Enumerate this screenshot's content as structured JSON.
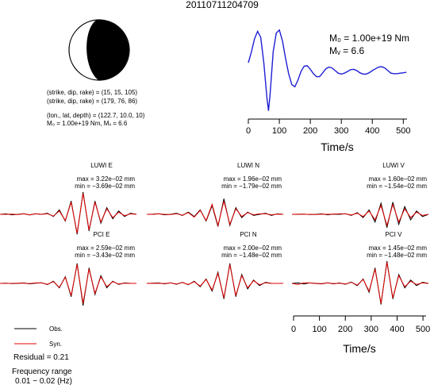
{
  "title": "20110711204709",
  "colors": {
    "observed": "#000000",
    "synthetic": "#e00000",
    "stf": "#1f1fd6",
    "beachball": "#000000"
  },
  "source": {
    "line1": "(strike, dip, rake) = (15, 15, 105)",
    "line2": "(strike, dip, rake) = (179, 76, 86)",
    "line3": "(lon., lat, depth) = (122.7, 10.0, 10)",
    "line4": "M₀ = 1.00e+19 Nm, Mᵥ = 6.6",
    "m0_label": "M₀ = 1.00e+19 Nm",
    "mw_label": "Mᵥ = 6.6"
  },
  "legend": {
    "obs": "Obs.",
    "syn": "Syn.",
    "residual": "Residual = 0.21",
    "freq_title": "Frequency range",
    "freq_values": "0.01 − 0.02 (Hz)"
  },
  "chart_data": [
    {
      "type": "line",
      "name": "source-time-function",
      "xlabel": "Time/s",
      "xlim": [
        0,
        512
      ],
      "xticks": [
        "0",
        "100",
        "200",
        "300",
        "400",
        "500"
      ],
      "x": [
        0,
        10,
        20,
        30,
        40,
        50,
        60,
        65,
        70,
        80,
        90,
        100,
        110,
        120,
        130,
        140,
        150,
        160,
        170,
        180,
        190,
        200,
        210,
        220,
        230,
        240,
        250,
        260,
        270,
        280,
        290,
        300,
        310,
        320,
        330,
        340,
        350,
        360,
        370,
        380,
        390,
        400,
        410,
        420,
        430,
        440,
        450,
        460,
        470,
        480,
        490,
        500,
        510
      ],
      "values": [
        0.2,
        0.45,
        0.75,
        0.92,
        0.78,
        0.2,
        -0.6,
        -0.9,
        -0.55,
        0.45,
        0.88,
        0.95,
        0.7,
        0.3,
        -0.05,
        -0.3,
        -0.35,
        -0.2,
        0.0,
        0.12,
        0.13,
        0.05,
        -0.05,
        -0.12,
        -0.12,
        -0.03,
        0.06,
        0.1,
        0.08,
        0.02,
        -0.04,
        -0.06,
        -0.04,
        0.0,
        0.04,
        0.05,
        0.02,
        -0.03,
        -0.06,
        -0.06,
        -0.03,
        0.02,
        0.06,
        0.1,
        0.11,
        0.08,
        0.02,
        -0.04,
        -0.05,
        -0.05,
        -0.04,
        -0.03,
        -0.02
      ]
    },
    {
      "type": "line",
      "name": "waveforms",
      "xlabel": "Time/s",
      "xlim": [
        0,
        512
      ],
      "xticks": [
        "0",
        "100",
        "200",
        "300",
        "400",
        "500"
      ],
      "legend": [
        "Obs.",
        "Syn."
      ],
      "traces": [
        {
          "label": "LUWI E",
          "max": "max = 3.22e−02 mm",
          "min": "min = −3.69e−02 mm",
          "obs": [
            0,
            0.02,
            -0.02,
            0.0,
            0.03,
            -0.03,
            0.02,
            0.0,
            0.05,
            -0.1,
            0.2,
            -0.3,
            0.6,
            -0.9,
            1.0,
            -0.75,
            0.6,
            -0.4,
            0.3,
            -0.2,
            0.15,
            -0.1,
            0.05,
            0.0
          ],
          "syn": [
            0,
            0.0,
            0.01,
            -0.01,
            0.02,
            -0.02,
            0.03,
            0.0,
            0.03,
            -0.08,
            0.15,
            -0.28,
            0.55,
            -0.85,
            0.95,
            -0.7,
            0.55,
            -0.35,
            0.25,
            -0.15,
            0.1,
            -0.06,
            0.02,
            0.0
          ]
        },
        {
          "label": "LUWI N",
          "max": "max = 1.96e−02 mm",
          "min": "min = −1.79e−02 mm",
          "obs": [
            0,
            0.01,
            0.03,
            -0.02,
            0.0,
            0.05,
            -0.05,
            0.1,
            -0.1,
            0.2,
            -0.3,
            0.4,
            -0.55,
            0.7,
            -0.5,
            0.3,
            -0.15,
            0.1,
            -0.05,
            0.0,
            0.05,
            -0.05,
            0.02,
            0.0
          ],
          "syn": [
            0,
            0.0,
            0.02,
            0.0,
            -0.01,
            0.03,
            -0.04,
            0.08,
            -0.12,
            0.18,
            -0.28,
            0.45,
            -0.5,
            0.6,
            -0.45,
            0.25,
            -0.1,
            0.08,
            -0.02,
            0.02,
            0.03,
            -0.02,
            0.01,
            0.0
          ]
        },
        {
          "label": "LUWI V",
          "max": "max = 1.60e−02 mm",
          "min": "min = −1.54e−02 mm",
          "obs": [
            0,
            0.0,
            0.01,
            -0.01,
            0.0,
            0.02,
            -0.02,
            0.01,
            0.0,
            0.03,
            -0.05,
            0.08,
            -0.15,
            0.2,
            -0.35,
            0.5,
            -0.6,
            0.55,
            -0.45,
            0.35,
            -0.25,
            0.15,
            -0.1,
            0.0
          ],
          "syn": [
            0,
            0.01,
            0.0,
            0.0,
            -0.01,
            0.01,
            0.0,
            0.01,
            0.02,
            0.02,
            -0.03,
            0.05,
            -0.1,
            0.15,
            -0.25,
            0.4,
            -0.5,
            0.45,
            -0.35,
            0.25,
            -0.15,
            0.1,
            -0.05,
            0.0
          ]
        },
        {
          "label": "PCI E",
          "max": "max = 2.59e−02 mm",
          "min": "min = −3.43e−02 mm",
          "obs": [
            0,
            0.01,
            -0.01,
            0.0,
            0.02,
            -0.02,
            0.01,
            0.03,
            -0.05,
            0.1,
            -0.2,
            0.3,
            -0.6,
            0.9,
            -1.0,
            0.7,
            -0.5,
            0.35,
            -0.2,
            0.1,
            -0.05,
            0.02,
            0.0,
            0.0
          ],
          "syn": [
            0,
            0.0,
            0.0,
            0.01,
            0.01,
            -0.01,
            0.02,
            0.02,
            -0.04,
            0.08,
            -0.18,
            0.28,
            -0.55,
            0.85,
            -0.9,
            0.65,
            -0.45,
            0.3,
            -0.15,
            0.08,
            -0.03,
            0.01,
            0.0,
            0.0
          ]
        },
        {
          "label": "PCI N",
          "max": "max = 2.00e−02 mm",
          "min": "min = −1.48e−02 mm",
          "obs": [
            0,
            0.01,
            0.02,
            -0.02,
            0.03,
            -0.04,
            0.05,
            -0.06,
            0.1,
            -0.15,
            0.2,
            -0.35,
            0.5,
            -0.7,
            0.9,
            -0.6,
            0.4,
            -0.25,
            0.15,
            -0.1,
            0.05,
            0.0,
            0.0,
            0.0
          ],
          "syn": [
            0,
            0.0,
            0.01,
            -0.01,
            0.02,
            -0.03,
            0.04,
            -0.05,
            0.08,
            -0.12,
            0.18,
            -0.3,
            0.45,
            -0.65,
            0.85,
            -0.55,
            0.35,
            -0.2,
            0.12,
            -0.06,
            0.03,
            0.0,
            0.0,
            0.0
          ]
        },
        {
          "label": "PCI V",
          "max": "max = 1.45e−02 mm",
          "min": "min = −1.48e−02 mm",
          "obs": [
            0,
            0.02,
            -0.03,
            0.02,
            0.0,
            -0.02,
            0.03,
            -0.02,
            0.02,
            -0.04,
            0.06,
            -0.1,
            0.2,
            -0.4,
            0.7,
            -0.95,
            1.0,
            -0.7,
            0.4,
            -0.2,
            0.15,
            -0.1,
            0.05,
            0.0
          ],
          "syn": [
            0,
            -0.05,
            0.03,
            0.02,
            -0.01,
            -0.01,
            0.02,
            -0.01,
            0.01,
            -0.03,
            0.05,
            -0.08,
            0.18,
            -0.35,
            0.65,
            -0.9,
            0.95,
            -0.65,
            0.35,
            -0.15,
            0.1,
            -0.05,
            0.02,
            0.0
          ]
        }
      ]
    }
  ]
}
